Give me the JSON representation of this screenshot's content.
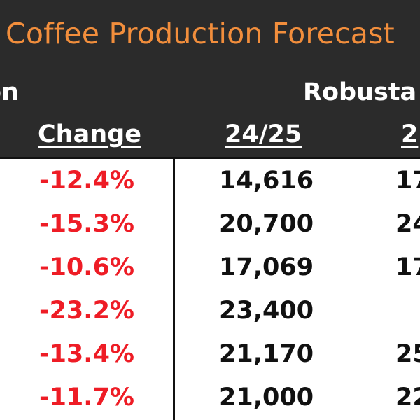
{
  "title": "Coffee Production Forecast",
  "groups": {
    "left_partial": "on",
    "right": "Robusta"
  },
  "columns": {
    "change": "Change",
    "season_2425": "24/25",
    "next_partial": "2"
  },
  "chart_data": {
    "type": "table",
    "title": "Coffee Production Forecast",
    "column_headers": [
      "Change",
      "24/25",
      "2"
    ],
    "rows": [
      {
        "change": "-12.4%",
        "robusta_2425": "14,616",
        "next_partial": "17"
      },
      {
        "change": "-15.3%",
        "robusta_2425": "20,700",
        "next_partial": "24"
      },
      {
        "change": "-10.6%",
        "robusta_2425": "17,069",
        "next_partial": "17"
      },
      {
        "change": "-23.2%",
        "robusta_2425": "23,400",
        "next_partial": ""
      },
      {
        "change": "-13.4%",
        "robusta_2425": "21,170",
        "next_partial": "25"
      },
      {
        "change": "-11.7%",
        "robusta_2425": "21,000",
        "next_partial": "22"
      }
    ],
    "colors": {
      "header_background": "#2b2b2b",
      "title": "#f28e3c",
      "header_text": "#ffffff",
      "negative_change": "#ee1c25",
      "values": "#111111"
    }
  }
}
